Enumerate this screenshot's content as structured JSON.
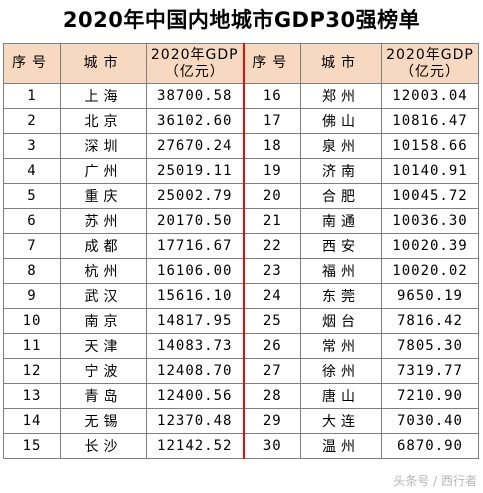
{
  "title": "2020年中国内地城市GDP30强榜单",
  "header": {
    "rank": "序号",
    "city": "城市",
    "gdp_line1": "2020年GDP",
    "gdp_line2": "（亿元）"
  },
  "colors": {
    "header_bg": "#f7d8c0",
    "divider": "#e01010",
    "border": "#7f7f7f"
  },
  "left": [
    {
      "rank": "1",
      "city": "上海",
      "gdp": "38700.58"
    },
    {
      "rank": "2",
      "city": "北京",
      "gdp": "36102.60"
    },
    {
      "rank": "3",
      "city": "深圳",
      "gdp": "27670.24"
    },
    {
      "rank": "4",
      "city": "广州",
      "gdp": "25019.11"
    },
    {
      "rank": "5",
      "city": "重庆",
      "gdp": "25002.79"
    },
    {
      "rank": "6",
      "city": "苏州",
      "gdp": "20170.50"
    },
    {
      "rank": "7",
      "city": "成都",
      "gdp": "17716.67"
    },
    {
      "rank": "8",
      "city": "杭州",
      "gdp": "16106.00"
    },
    {
      "rank": "9",
      "city": "武汉",
      "gdp": "15616.10"
    },
    {
      "rank": "10",
      "city": "南京",
      "gdp": "14817.95"
    },
    {
      "rank": "11",
      "city": "天津",
      "gdp": "14083.73"
    },
    {
      "rank": "12",
      "city": "宁波",
      "gdp": "12408.70"
    },
    {
      "rank": "13",
      "city": "青岛",
      "gdp": "12400.56"
    },
    {
      "rank": "14",
      "city": "无锡",
      "gdp": "12370.48"
    },
    {
      "rank": "15",
      "city": "长沙",
      "gdp": "12142.52"
    }
  ],
  "right": [
    {
      "rank": "16",
      "city": "郑州",
      "gdp": "12003.04"
    },
    {
      "rank": "17",
      "city": "佛山",
      "gdp": "10816.47"
    },
    {
      "rank": "18",
      "city": "泉州",
      "gdp": "10158.66"
    },
    {
      "rank": "19",
      "city": "济南",
      "gdp": "10140.91"
    },
    {
      "rank": "20",
      "city": "合肥",
      "gdp": "10045.72"
    },
    {
      "rank": "21",
      "city": "南通",
      "gdp": "10036.30"
    },
    {
      "rank": "22",
      "city": "西安",
      "gdp": "10020.39"
    },
    {
      "rank": "23",
      "city": "福州",
      "gdp": "10020.02"
    },
    {
      "rank": "24",
      "city": "东莞",
      "gdp": "9650.19"
    },
    {
      "rank": "25",
      "city": "烟台",
      "gdp": "7816.42"
    },
    {
      "rank": "26",
      "city": "常州",
      "gdp": "7805.30"
    },
    {
      "rank": "27",
      "city": "徐州",
      "gdp": "7319.77"
    },
    {
      "rank": "28",
      "city": "唐山",
      "gdp": "7210.90"
    },
    {
      "rank": "29",
      "city": "大连",
      "gdp": "7030.40"
    },
    {
      "rank": "30",
      "city": "温州",
      "gdp": "6870.90"
    }
  ],
  "watermark": "头条号 / 西行者"
}
